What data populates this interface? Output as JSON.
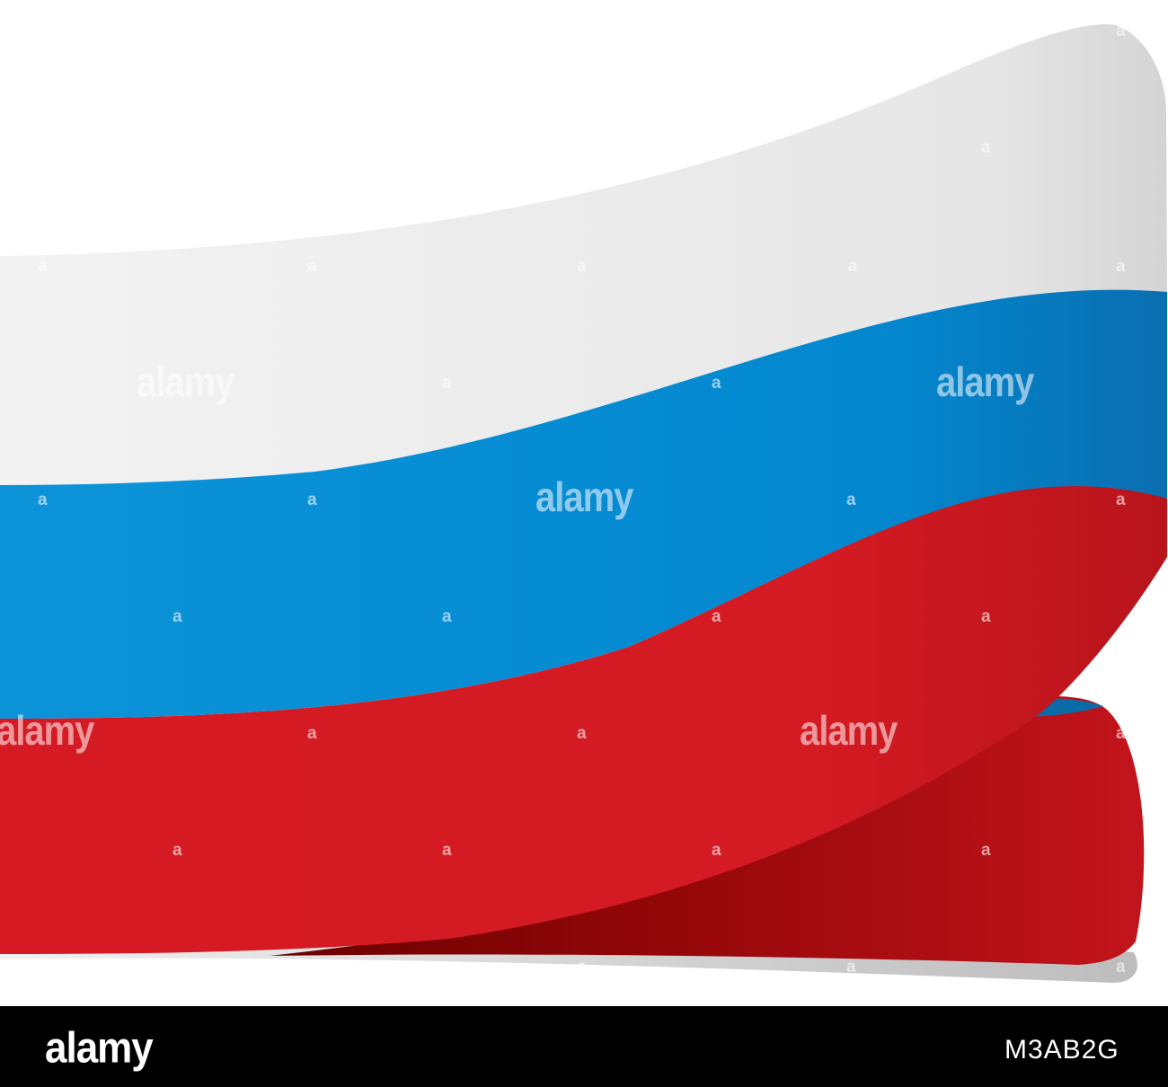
{
  "image": {
    "subject": "russia-flag-ribbon",
    "colors": {
      "white_stripe": "#ededed",
      "blue_stripe": "#0a8ed4",
      "red_stripe": "#d21a22",
      "red_shadow": "#8b0505",
      "background": "#ffffff",
      "footer_background": "#000000"
    }
  },
  "watermark": {
    "word": "alamy",
    "mark": "a"
  },
  "footer": {
    "logo": "alamy",
    "image_id": "M3AB2G"
  }
}
